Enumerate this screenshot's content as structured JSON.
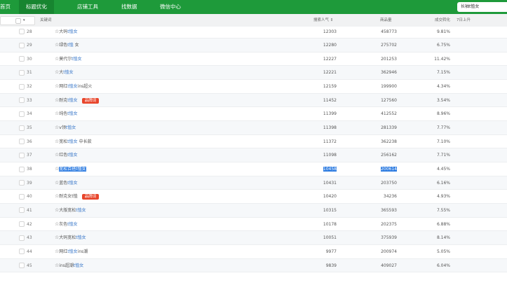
{
  "nav": {
    "items": [
      "首页",
      "标题优化",
      "店铺工具",
      "找数据",
      "微信中心"
    ],
    "active": 1,
    "search_value": "长袖t恤女"
  },
  "header": {
    "keyword": "关键词",
    "search_popularity": "搜索人气 ⇕",
    "product_count": "商品量",
    "conversion": "成交转化",
    "rise_7d": "7日上升",
    "dropdown_arrow": "▾"
  },
  "badge_label": "品牌词",
  "colors": {
    "nav": "#1e9a3a",
    "link": "#3a78c9",
    "badge": "#e8462c",
    "selection": "#2f7de1"
  },
  "rows": [
    {
      "no": "28",
      "pre": "大码",
      "hl": "t恤女",
      "post": "",
      "badge": false,
      "pop": "12303",
      "count": "458773",
      "conv": "9.81%"
    },
    {
      "no": "29",
      "pre": "绿色",
      "hl": "t恤",
      "post": " 女",
      "badge": false,
      "pop": "12280",
      "count": "275702",
      "conv": "6.75%"
    },
    {
      "no": "30",
      "pre": "莫代尔",
      "hl": "t恤女",
      "post": "",
      "badge": false,
      "pop": "12227",
      "count": "201253",
      "conv": "11.42%"
    },
    {
      "no": "31",
      "pre": "大",
      "hl": "t恤女",
      "post": "",
      "badge": false,
      "pop": "12221",
      "count": "362946",
      "conv": "7.15%"
    },
    {
      "no": "32",
      "pre": "网红",
      "hl": "t恤女",
      "post": "ins超火",
      "badge": false,
      "pop": "12159",
      "count": "199900",
      "conv": "4.34%"
    },
    {
      "no": "33",
      "pre": "耐克",
      "hl": "t恤女",
      "post": "",
      "badge": true,
      "pop": "11452",
      "count": "127560",
      "conv": "3.54%"
    },
    {
      "no": "34",
      "pre": "纯色",
      "hl": "t恤女",
      "post": "",
      "badge": false,
      "pop": "11399",
      "count": "412552",
      "conv": "8.96%"
    },
    {
      "no": "35",
      "pre": "v领",
      "hl": "t恤女",
      "post": "",
      "badge": false,
      "pop": "11398",
      "count": "281339",
      "conv": "7.77%"
    },
    {
      "no": "36",
      "pre": "宽松",
      "hl": "t恤女",
      "post": " 中长款",
      "badge": false,
      "pop": "11372",
      "count": "362238",
      "conv": "7.10%"
    },
    {
      "no": "37",
      "pre": "红色",
      "hl": "t恤女",
      "post": "",
      "badge": false,
      "pop": "11098",
      "count": "256162",
      "conv": "7.71%"
    },
    {
      "no": "38",
      "pre": "",
      "hl": "宽松百搭t恤女",
      "post": "",
      "badge": false,
      "selected": true,
      "pop": "10458",
      "count": "200614",
      "conv": "4.45%"
    },
    {
      "no": "39",
      "pre": "蓝色",
      "hl": "t恤女",
      "post": "",
      "badge": false,
      "pop": "10431",
      "count": "203750",
      "conv": "6.16%"
    },
    {
      "no": "40",
      "pre": "耐克女t恤",
      "hl": "",
      "post": "",
      "badge": true,
      "pop": "10420",
      "count": "34236",
      "conv": "4.93%"
    },
    {
      "no": "41",
      "pre": "大版宽松",
      "hl": "t恤女",
      "post": "",
      "badge": false,
      "pop": "10315",
      "count": "365593",
      "conv": "7.55%"
    },
    {
      "no": "42",
      "pre": "灰色",
      "hl": "t恤女",
      "post": "",
      "badge": false,
      "pop": "10178",
      "count": "202375",
      "conv": "6.88%"
    },
    {
      "no": "43",
      "pre": "大码宽松",
      "hl": "t恤女",
      "post": "",
      "badge": false,
      "pop": "10051",
      "count": "375939",
      "conv": "8.14%"
    },
    {
      "no": "44",
      "pre": "网红",
      "hl": "t恤女",
      "post": "ins潮",
      "badge": false,
      "pop": "9977",
      "count": "200974",
      "conv": "5.05%"
    },
    {
      "no": "45",
      "pre": "ins超潮",
      "hl": "t恤女",
      "post": "",
      "badge": false,
      "pop": "9839",
      "count": "409027",
      "conv": "6.04%"
    }
  ]
}
